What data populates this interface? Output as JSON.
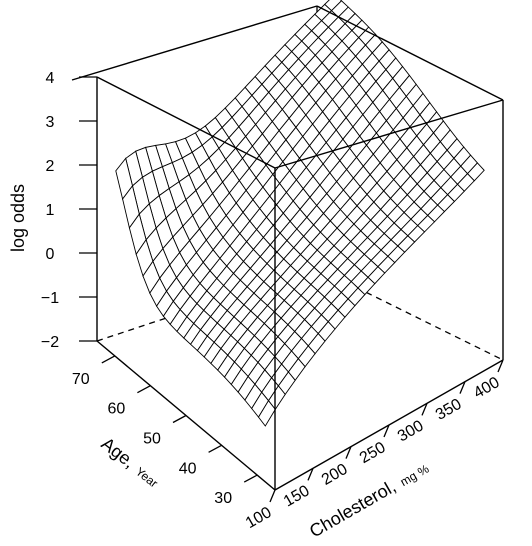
{
  "chart_data": {
    "type": "surface",
    "zlabel": "log odds",
    "xlabel": "Age,",
    "xlabel_unit": "Year",
    "ylabel": "Cholesterol,",
    "ylabel_unit": "mg %",
    "zticks": [
      "4",
      "3",
      "2",
      "1",
      "0",
      "−1",
      "−2"
    ],
    "xticks": [
      "30",
      "40",
      "50",
      "60",
      "70"
    ],
    "yticks": [
      "100",
      "150",
      "200",
      "250",
      "300",
      "350",
      "400"
    ],
    "zlim": [
      -2,
      4
    ],
    "xlim": [
      25,
      75
    ],
    "ylim": [
      100,
      400
    ],
    "grid": false,
    "surface_description": "log odds surface rising with cholesterol and age, with a sharp ridge at high age and low cholesterol"
  }
}
